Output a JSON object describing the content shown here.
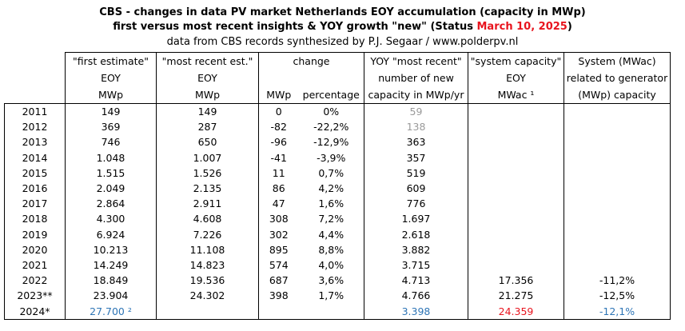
{
  "title": {
    "line1": "CBS - changes in data PV market Netherlands EOY accumulation (capacity in MWp)",
    "line2_prefix": "first versus most recent insights & YOY growth \"new\" (Status ",
    "line2_date": "March 10, 2025",
    "line2_suffix": ")",
    "line3": "data from CBS records synthesized by P.J. Segaar / www.polderpv.nl"
  },
  "headers": {
    "row1": [
      "\"first estimate\"",
      "\"most recent est.\"",
      "change",
      "YOY \"most recent\"",
      "\"system capacity\"",
      "System (MWac)"
    ],
    "row2": [
      "EOY",
      "EOY",
      "number  of new",
      "EOY",
      "related to generator"
    ],
    "row3": [
      "MWp",
      "MWp",
      "MWp",
      "percentage",
      "capacity in MWp/yr",
      "MWac ¹",
      "(MWp) capacity"
    ]
  },
  "rows": [
    {
      "year": "2011",
      "first": "149",
      "recent": "149",
      "mwp": "0",
      "pct": "0%",
      "yoy": "59",
      "sys": "",
      "ratio": ""
    },
    {
      "year": "2012",
      "first": "369",
      "recent": "287",
      "mwp": "-82",
      "pct": "-22,2%",
      "yoy": "138",
      "sys": "",
      "ratio": ""
    },
    {
      "year": "2013",
      "first": "746",
      "recent": "650",
      "mwp": "-96",
      "pct": "-12,9%",
      "yoy": "363",
      "sys": "",
      "ratio": ""
    },
    {
      "year": "2014",
      "first": "1.048",
      "recent": "1.007",
      "mwp": "-41",
      "pct": "-3,9%",
      "yoy": "357",
      "sys": "",
      "ratio": ""
    },
    {
      "year": "2015",
      "first": "1.515",
      "recent": "1.526",
      "mwp": "11",
      "pct": "0,7%",
      "yoy": "519",
      "sys": "",
      "ratio": ""
    },
    {
      "year": "2016",
      "first": "2.049",
      "recent": "2.135",
      "mwp": "86",
      "pct": "4,2%",
      "yoy": "609",
      "sys": "",
      "ratio": ""
    },
    {
      "year": "2017",
      "first": "2.864",
      "recent": "2.911",
      "mwp": "47",
      "pct": "1,6%",
      "yoy": "776",
      "sys": "",
      "ratio": ""
    },
    {
      "year": "2018",
      "first": "4.300",
      "recent": "4.608",
      "mwp": "308",
      "pct": "7,2%",
      "yoy": "1.697",
      "sys": "",
      "ratio": ""
    },
    {
      "year": "2019",
      "first": "6.924",
      "recent": "7.226",
      "mwp": "302",
      "pct": "4,4%",
      "yoy": "2.618",
      "sys": "",
      "ratio": ""
    },
    {
      "year": "2020",
      "first": "10.213",
      "recent": "11.108",
      "mwp": "895",
      "pct": "8,8%",
      "yoy": "3.882",
      "sys": "",
      "ratio": ""
    },
    {
      "year": "2021",
      "first": "14.249",
      "recent": "14.823",
      "mwp": "574",
      "pct": "4,0%",
      "yoy": "3.715",
      "sys": "",
      "ratio": ""
    },
    {
      "year": "2022",
      "first": "18.849",
      "recent": "19.536",
      "mwp": "687",
      "pct": "3,6%",
      "yoy": "4.713",
      "sys": "17.356",
      "ratio": "-11,2%"
    },
    {
      "year": "2023**",
      "first": "23.904",
      "recent": "24.302",
      "mwp": "398",
      "pct": "1,7%",
      "yoy": "4.766",
      "sys": "21.275",
      "ratio": "-12,5%"
    },
    {
      "year": "2024*",
      "first": "27.700 ²",
      "recent": "",
      "mwp": "",
      "pct": "",
      "yoy": "3.398",
      "sys": "24.359",
      "ratio": "-12,1%"
    }
  ],
  "colors": {
    "date_red": "#e8141e",
    "gray_values": "#9a9a9a",
    "blue_values": "#2e75b6",
    "red_value": "#e8141e"
  }
}
